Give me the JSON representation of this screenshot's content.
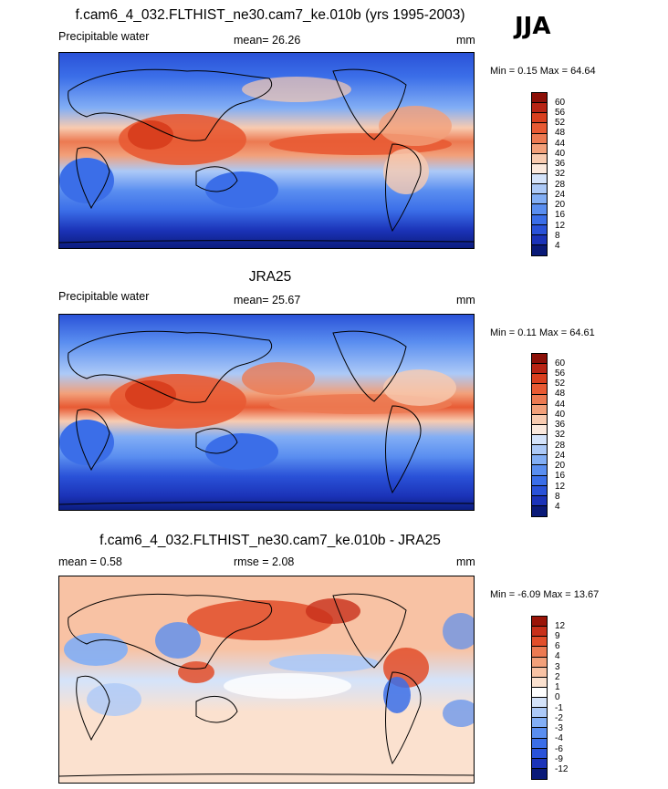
{
  "season_label": "JJA",
  "palette_abs": [
    "#0a1a78",
    "#1b33b8",
    "#2a52d8",
    "#3b6ee8",
    "#5a8ef0",
    "#82aef5",
    "#acc9f7",
    "#d4e3fa",
    "#fbe9dd",
    "#f8cbb0",
    "#f2a07a",
    "#ec7a52",
    "#e85a33",
    "#d93f1e",
    "#b82414",
    "#8c1008"
  ],
  "palette_diff": [
    "#0a1a78",
    "#1b33b8",
    "#2a52d8",
    "#3b6ee8",
    "#5a8ef0",
    "#82aef5",
    "#acc9f7",
    "#d4e3fa",
    "#ffffff",
    "#fbe1cf",
    "#f8c2a4",
    "#f2a07a",
    "#ec7a52",
    "#e24e2a",
    "#c8301a",
    "#9a1408"
  ],
  "panels": [
    {
      "title": "f.cam6_4_032.FLTHIST_ne30.cam7_ke.010b (yrs 1995-2003)",
      "left_label": "Precipitable water",
      "center_label": "mean=  26.26",
      "units": "mm",
      "min_label": "Min =",
      "min_value": "0.15",
      "max_label": "Max =",
      "max_value": "64.64",
      "ticks": [
        "60",
        "56",
        "52",
        "48",
        "44",
        "40",
        "36",
        "32",
        "28",
        "24",
        "20",
        "16",
        "12",
        "8",
        "4"
      ]
    },
    {
      "title": "JRA25",
      "left_label": "Precipitable water",
      "center_label": "mean=  25.67",
      "units": "mm",
      "min_label": "Min =",
      "min_value": "0.11",
      "max_label": "Max =",
      "max_value": "64.61",
      "ticks": [
        "60",
        "56",
        "52",
        "48",
        "44",
        "40",
        "36",
        "32",
        "28",
        "24",
        "20",
        "16",
        "12",
        "8",
        "4"
      ]
    },
    {
      "title": "f.cam6_4_032.FLTHIST_ne30.cam7_ke.010b - JRA25",
      "left_label": "mean =   0.58",
      "center_label": "rmse =   2.08",
      "units": "mm",
      "min_label": "Min =",
      "min_value": "-6.09",
      "max_label": "Max =",
      "max_value": "13.67",
      "ticks": [
        "12",
        "9",
        "6",
        "4",
        "3",
        "2",
        "1",
        "0",
        "-1",
        "-2",
        "-3",
        "-4",
        "-6",
        "-9",
        "-12"
      ]
    }
  ]
}
